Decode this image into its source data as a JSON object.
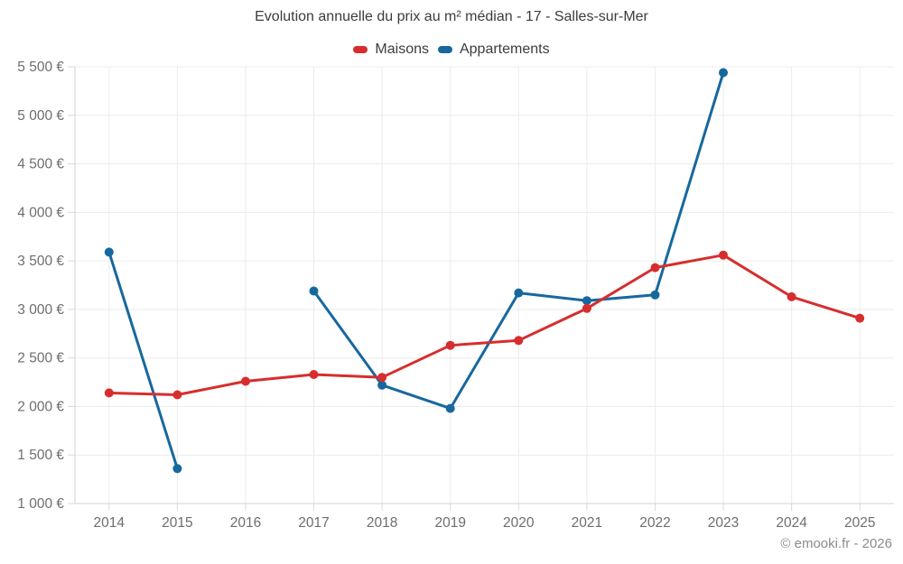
{
  "chart_data": {
    "type": "line",
    "title": "Evolution annuelle du prix au m² médian - 17 - Salles-sur-Mer",
    "categories": [
      "2014",
      "2015",
      "2016",
      "2017",
      "2018",
      "2019",
      "2020",
      "2021",
      "2022",
      "2023",
      "2024",
      "2025"
    ],
    "series": [
      {
        "name": "Maisons",
        "color": "#d62e2e",
        "values": [
          2140,
          2120,
          2260,
          2330,
          2300,
          2630,
          2680,
          3010,
          3430,
          3560,
          3130,
          2910
        ]
      },
      {
        "name": "Appartements",
        "color": "#17689e",
        "values": [
          3590,
          1360,
          null,
          3190,
          2220,
          1980,
          3170,
          3090,
          3150,
          5440,
          null,
          null
        ]
      }
    ],
    "ylim": [
      1000,
      5500
    ],
    "y_tick_step": 500,
    "y_tick_labels": [
      "1 000 €",
      "1 500 €",
      "2 000 €",
      "2 500 €",
      "3 000 €",
      "3 500 €",
      "4 000 €",
      "4 500 €",
      "5 000 €",
      "5 500 €"
    ],
    "currency_suffix": "€",
    "grid": true,
    "legend_position": "top",
    "span_gaps": false
  },
  "footer": {
    "copyright": "© emooki.fr - 2026"
  },
  "style": {
    "grid_color": "#ececec",
    "tick_color": "#d9d9d9",
    "axis_color": "#d3d3d3",
    "tick_label_color": "#6e6e6e",
    "title_color": "#3c3c3c"
  }
}
